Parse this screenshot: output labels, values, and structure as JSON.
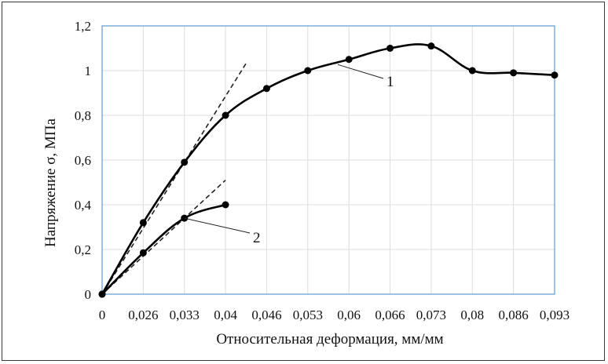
{
  "chart_data": {
    "type": "line",
    "xlabel": "Относительная деформация, мм/мм",
    "ylabel": "Напряжение σ, МПа",
    "x_tick_labels": [
      "0",
      "0,026",
      "0,033",
      "0,04",
      "0,046",
      "0,053",
      "0,06",
      "0,066",
      "0,073",
      "0,08",
      "0,086",
      "0,093"
    ],
    "y_tick_labels": [
      "0",
      "0,2",
      "0,4",
      "0,6",
      "0,8",
      "1",
      "1,2"
    ],
    "ylim": [
      0,
      1.2
    ],
    "grid": true,
    "series": [
      {
        "values": [
          0,
          0.32,
          0.59,
          0.8,
          0.92,
          1.0,
          1.05,
          1.1,
          1.11,
          1.0,
          0.99,
          0.98
        ]
      },
      {
        "values": [
          0,
          0.185,
          0.34,
          0.4
        ]
      }
    ],
    "annotations": [
      {
        "text": "1",
        "series": 0
      },
      {
        "text": "2",
        "series": 1
      }
    ]
  }
}
